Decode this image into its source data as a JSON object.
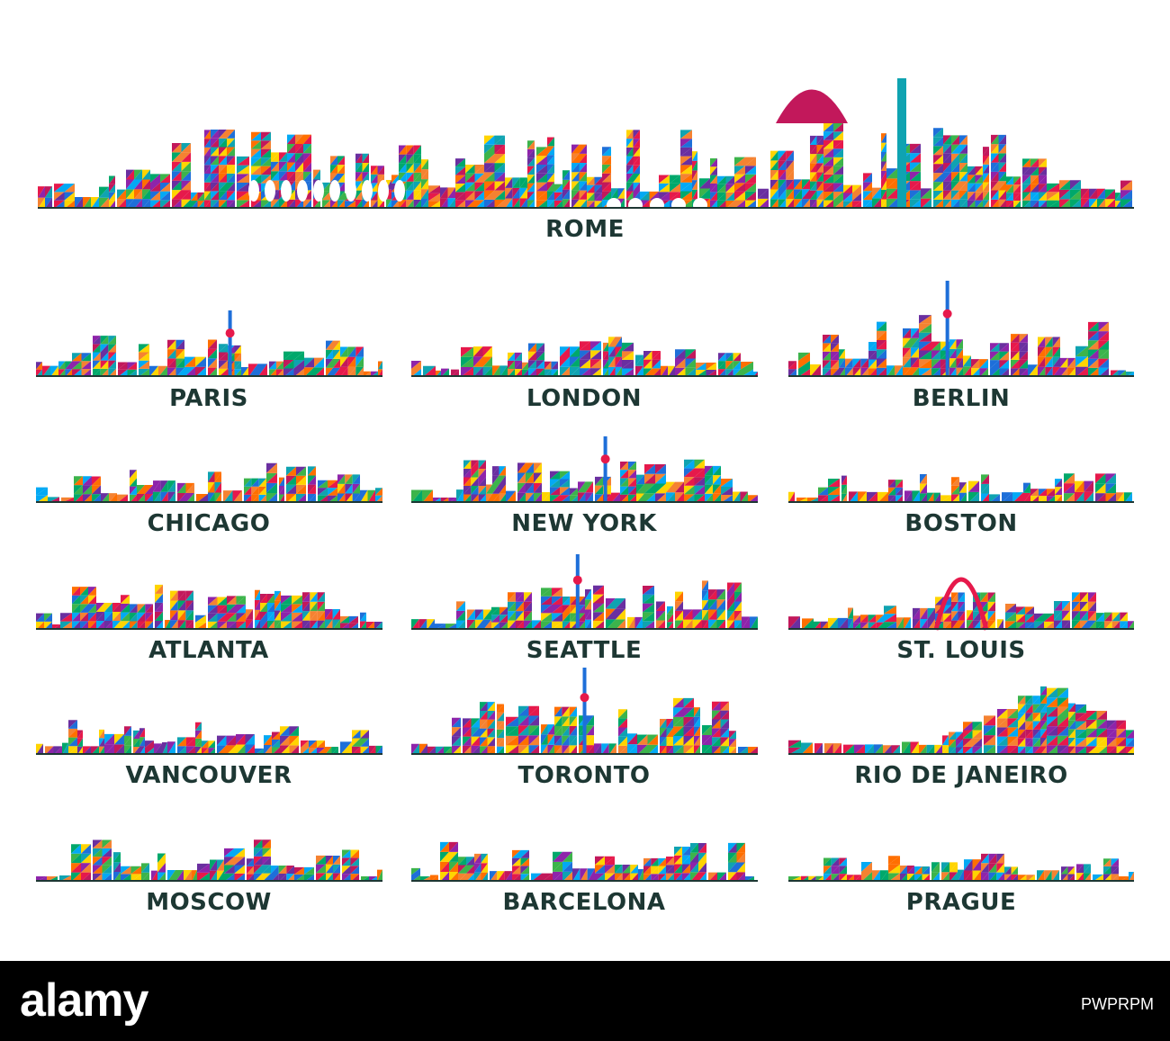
{
  "palette": [
    "#e6194b",
    "#f58231",
    "#ffd400",
    "#3cb44b",
    "#0fa3b1",
    "#1e6fd9",
    "#6a2fa0",
    "#c2185b",
    "#ff6f00",
    "#00a86b",
    "#8e24aa",
    "#03a9f4"
  ],
  "ink_color": "#1d3733",
  "cities": [
    {
      "id": "rome",
      "name": "ROME"
    },
    {
      "id": "paris",
      "name": "PARIS"
    },
    {
      "id": "london",
      "name": "LONDON"
    },
    {
      "id": "berlin",
      "name": "BERLIN"
    },
    {
      "id": "chicago",
      "name": "CHICAGO"
    },
    {
      "id": "new-york",
      "name": "NEW YORK"
    },
    {
      "id": "boston",
      "name": "BOSTON"
    },
    {
      "id": "atlanta",
      "name": "ATLANTA"
    },
    {
      "id": "seattle",
      "name": "SEATTLE"
    },
    {
      "id": "st-louis",
      "name": "ST. LOUIS"
    },
    {
      "id": "vancouver",
      "name": "VANCOUVER"
    },
    {
      "id": "toronto",
      "name": "TORONTO"
    },
    {
      "id": "rio-de-janeiro",
      "name": "RIO DE JANEIRO"
    },
    {
      "id": "moscow",
      "name": "MOSCOW"
    },
    {
      "id": "barcelona",
      "name": "BARCELONA"
    },
    {
      "id": "prague",
      "name": "PRAGUE"
    }
  ],
  "footer": {
    "logo_text": "alamy",
    "image_id": "PWPRPM"
  }
}
